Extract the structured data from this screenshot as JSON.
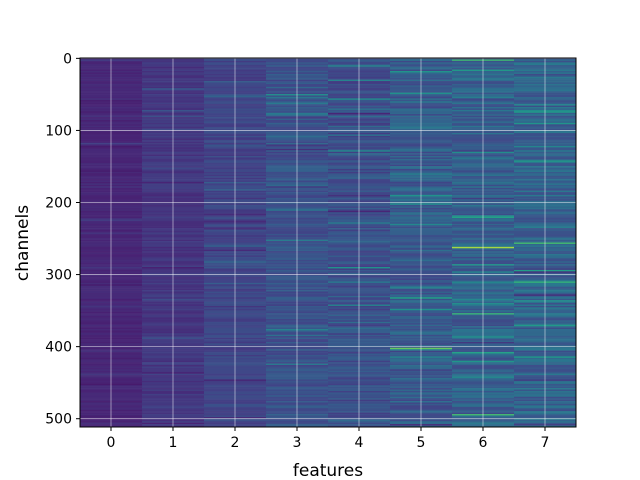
{
  "chart_data": {
    "type": "heatmap",
    "title": "",
    "xlabel": "features",
    "ylabel": "channels",
    "x_ticks": [
      "0",
      "1",
      "2",
      "3",
      "4",
      "5",
      "6",
      "7"
    ],
    "y_ticks": [
      "0",
      "100",
      "200",
      "300",
      "400",
      "500"
    ],
    "x_tick_values": [
      0,
      1,
      2,
      3,
      4,
      5,
      6,
      7
    ],
    "y_tick_values": [
      0,
      100,
      200,
      300,
      400,
      500
    ],
    "xlim": [
      -0.5,
      7.5
    ],
    "ylim": [
      511.5,
      -0.5
    ],
    "n_rows": 512,
    "n_cols": 8,
    "grid": true,
    "colormap": "viridis",
    "column_intensity": [
      0.14,
      0.2,
      0.26,
      0.32,
      0.3,
      0.36,
      0.38,
      0.4
    ],
    "column_spread": [
      0.05,
      0.08,
      0.11,
      0.15,
      0.16,
      0.21,
      0.21,
      0.22
    ],
    "highlights": [
      {
        "feature": 6,
        "channel": 262,
        "value": 0.92
      },
      {
        "feature": 5,
        "channel": 402,
        "value": 0.85
      },
      {
        "feature": 7,
        "channel": 256,
        "value": 0.8
      },
      {
        "feature": 6,
        "channel": 218,
        "value": 0.55
      },
      {
        "feature": 5,
        "channel": 60,
        "value": 0.5
      },
      {
        "feature": 7,
        "channel": 190,
        "value": 0.5
      }
    ]
  }
}
